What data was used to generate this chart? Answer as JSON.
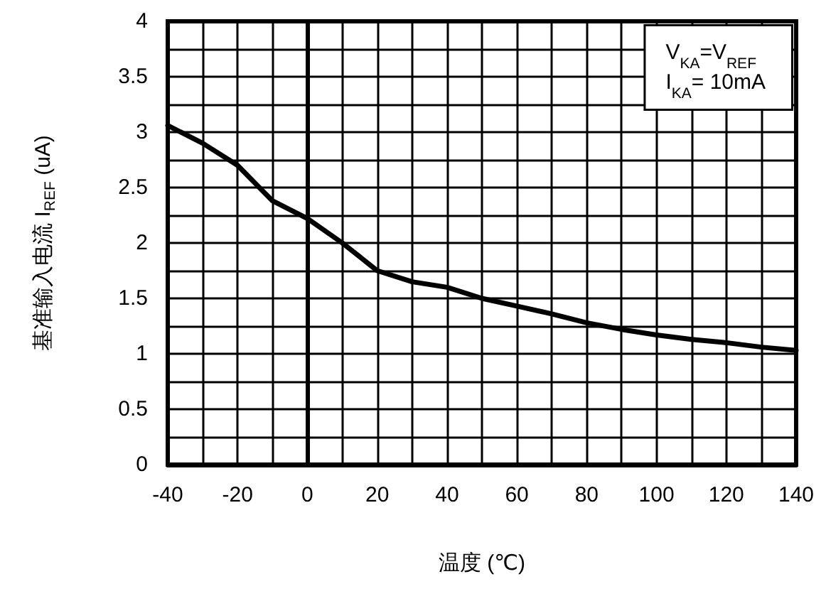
{
  "chart_data": {
    "type": "line",
    "xlabel": "温度 (℃)",
    "ylabel": "基准输入电流 I$_{REF}$ (uA)",
    "annotations": [
      "V$_{KA}$=V$_{REF}$",
      "I$_{KA}$= 10mA"
    ],
    "x": [
      -40,
      -30,
      -20,
      -10,
      0,
      10,
      20,
      30,
      40,
      50,
      60,
      70,
      80,
      90,
      100,
      110,
      120,
      130,
      140
    ],
    "series": [
      {
        "color": "#000000",
        "values": [
          3.06,
          2.9,
          2.7,
          2.38,
          2.22,
          2.0,
          1.75,
          1.65,
          1.6,
          1.5,
          1.43,
          1.36,
          1.28,
          1.22,
          1.17,
          1.13,
          1.1,
          1.06,
          1.03
        ]
      }
    ],
    "xlim": [
      -40,
      140
    ],
    "xticks": [
      -40,
      -20,
      0,
      20,
      40,
      60,
      80,
      100,
      120,
      140
    ],
    "ylim": [
      0,
      4
    ],
    "yticks": [
      0,
      0.5,
      1,
      1.5,
      2,
      2.5,
      3,
      3.5,
      4
    ],
    "grid": true,
    "marker": "none",
    "line_style": "solid"
  }
}
